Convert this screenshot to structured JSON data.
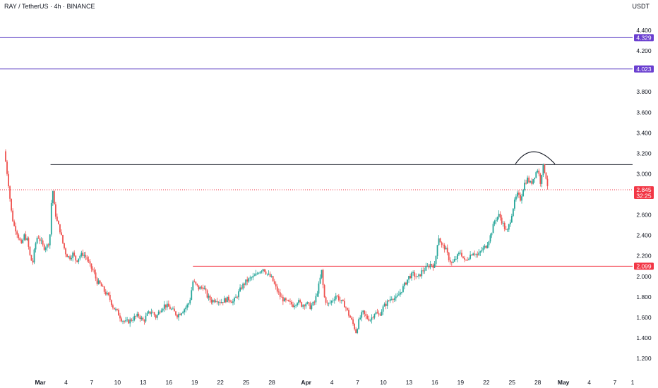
{
  "header": {
    "title": "RAY / TetherUS · 4h · BINANCE",
    "currency": "USDT"
  },
  "colors": {
    "up": "#26a69a",
    "down": "#ef5350",
    "level_purple": "#5b3fc4",
    "level_black": "#131722",
    "level_red": "#f23645",
    "price_dotted": "#f23645",
    "label_purple": "#6a3fd0",
    "label_red": "#f23645"
  },
  "chart_data": {
    "type": "candlestick",
    "interval": "4h",
    "symbol": "RAY / TetherUS",
    "exchange": "BINANCE",
    "ylim": [
      1.1,
      4.5
    ],
    "y_ticks": [
      "4.400",
      "4.200",
      "3.800",
      "3.600",
      "3.400",
      "3.200",
      "3.000",
      "2.600",
      "2.400",
      "2.200",
      "2.000",
      "1.800",
      "1.600",
      "1.400",
      "1.200"
    ],
    "x_ticks": [
      {
        "label": "Mar",
        "bold": true,
        "day": 0
      },
      {
        "label": "4",
        "bold": false,
        "day": 3
      },
      {
        "label": "7",
        "bold": false,
        "day": 6
      },
      {
        "label": "10",
        "bold": false,
        "day": 9
      },
      {
        "label": "13",
        "bold": false,
        "day": 12
      },
      {
        "label": "16",
        "bold": false,
        "day": 15
      },
      {
        "label": "19",
        "bold": false,
        "day": 18
      },
      {
        "label": "22",
        "bold": false,
        "day": 21
      },
      {
        "label": "25",
        "bold": false,
        "day": 24
      },
      {
        "label": "28",
        "bold": false,
        "day": 27
      },
      {
        "label": "Apr",
        "bold": true,
        "day": 31
      },
      {
        "label": "4",
        "bold": false,
        "day": 34
      },
      {
        "label": "7",
        "bold": false,
        "day": 37
      },
      {
        "label": "10",
        "bold": false,
        "day": 40
      },
      {
        "label": "13",
        "bold": false,
        "day": 43
      },
      {
        "label": "16",
        "bold": false,
        "day": 46
      },
      {
        "label": "19",
        "bold": false,
        "day": 49
      },
      {
        "label": "22",
        "bold": false,
        "day": 52
      },
      {
        "label": "25",
        "bold": false,
        "day": 55
      },
      {
        "label": "28",
        "bold": false,
        "day": 58
      },
      {
        "label": "May",
        "bold": true,
        "day": 61
      },
      {
        "label": "4",
        "bold": false,
        "day": 64
      },
      {
        "label": "7",
        "bold": false,
        "day": 67
      },
      {
        "label": "1",
        "bold": false,
        "day": 70
      }
    ],
    "price_path": [
      [
        -4.2,
        3.22
      ],
      [
        -4.0,
        3.1
      ],
      [
        -3.7,
        2.9
      ],
      [
        -3.4,
        2.65
      ],
      [
        -3.1,
        2.5
      ],
      [
        -2.8,
        2.45
      ],
      [
        -2.5,
        2.38
      ],
      [
        -2.2,
        2.3
      ],
      [
        -1.9,
        2.4
      ],
      [
        -1.5,
        2.35
      ],
      [
        -1.2,
        2.2
      ],
      [
        -0.9,
        2.12
      ],
      [
        -0.6,
        2.3
      ],
      [
        -0.3,
        2.4
      ],
      [
        0.0,
        2.35
      ],
      [
        0.4,
        2.28
      ],
      [
        0.8,
        2.3
      ],
      [
        1.1,
        2.35
      ],
      [
        1.4,
        2.9
      ],
      [
        1.6,
        2.7
      ],
      [
        1.9,
        2.55
      ],
      [
        2.3,
        2.45
      ],
      [
        2.7,
        2.3
      ],
      [
        3.0,
        2.22
      ],
      [
        3.4,
        2.18
      ],
      [
        3.8,
        2.22
      ],
      [
        4.2,
        2.15
      ],
      [
        4.6,
        2.2
      ],
      [
        5.0,
        2.22
      ],
      [
        5.4,
        2.18
      ],
      [
        5.8,
        2.1
      ],
      [
        6.2,
        2.05
      ],
      [
        6.6,
        1.95
      ],
      [
        7.0,
        1.92
      ],
      [
        7.5,
        1.85
      ],
      [
        8.0,
        1.8
      ],
      [
        8.5,
        1.7
      ],
      [
        9.0,
        1.65
      ],
      [
        9.5,
        1.58
      ],
      [
        10.0,
        1.55
      ],
      [
        10.5,
        1.57
      ],
      [
        11.0,
        1.6
      ],
      [
        11.5,
        1.62
      ],
      [
        12.0,
        1.56
      ],
      [
        12.5,
        1.63
      ],
      [
        13.0,
        1.66
      ],
      [
        13.5,
        1.6
      ],
      [
        14.0,
        1.68
      ],
      [
        14.5,
        1.72
      ],
      [
        15.0,
        1.7
      ],
      [
        15.5,
        1.66
      ],
      [
        16.0,
        1.62
      ],
      [
        16.5,
        1.66
      ],
      [
        17.0,
        1.7
      ],
      [
        17.4,
        1.75
      ],
      [
        17.8,
        1.95
      ],
      [
        18.1,
        1.92
      ],
      [
        18.5,
        1.88
      ],
      [
        19.0,
        1.9
      ],
      [
        19.5,
        1.8
      ],
      [
        20.0,
        1.76
      ],
      [
        20.5,
        1.78
      ],
      [
        21.0,
        1.75
      ],
      [
        21.5,
        1.77
      ],
      [
        22.0,
        1.78
      ],
      [
        22.5,
        1.75
      ],
      [
        23.0,
        1.82
      ],
      [
        23.5,
        1.9
      ],
      [
        24.0,
        1.95
      ],
      [
        24.5,
        1.98
      ],
      [
        25.0,
        2.0
      ],
      [
        25.5,
        2.05
      ],
      [
        26.0,
        2.08
      ],
      [
        26.5,
        2.02
      ],
      [
        27.0,
        1.98
      ],
      [
        27.5,
        1.88
      ],
      [
        28.0,
        1.8
      ],
      [
        28.5,
        1.76
      ],
      [
        29.0,
        1.74
      ],
      [
        29.5,
        1.72
      ],
      [
        30.0,
        1.76
      ],
      [
        30.5,
        1.72
      ],
      [
        31.0,
        1.74
      ],
      [
        31.5,
        1.7
      ],
      [
        32.0,
        1.75
      ],
      [
        32.5,
        1.92
      ],
      [
        32.8,
        2.05
      ],
      [
        33.1,
        1.8
      ],
      [
        33.5,
        1.72
      ],
      [
        34.0,
        1.76
      ],
      [
        34.5,
        1.82
      ],
      [
        35.0,
        1.76
      ],
      [
        35.5,
        1.72
      ],
      [
        36.0,
        1.62
      ],
      [
        36.4,
        1.55
      ],
      [
        36.8,
        1.46
      ],
      [
        37.2,
        1.58
      ],
      [
        37.6,
        1.65
      ],
      [
        38.0,
        1.6
      ],
      [
        38.5,
        1.58
      ],
      [
        39.0,
        1.65
      ],
      [
        39.5,
        1.62
      ],
      [
        40.0,
        1.7
      ],
      [
        40.5,
        1.75
      ],
      [
        41.0,
        1.8
      ],
      [
        41.5,
        1.78
      ],
      [
        42.0,
        1.85
      ],
      [
        42.5,
        1.92
      ],
      [
        43.0,
        2.0
      ],
      [
        43.5,
        2.02
      ],
      [
        44.0,
        1.98
      ],
      [
        44.5,
        2.05
      ],
      [
        45.0,
        2.08
      ],
      [
        45.5,
        2.12
      ],
      [
        46.0,
        2.1
      ],
      [
        46.4,
        2.4
      ],
      [
        46.8,
        2.3
      ],
      [
        47.2,
        2.28
      ],
      [
        47.6,
        2.18
      ],
      [
        48.0,
        2.12
      ],
      [
        48.5,
        2.18
      ],
      [
        49.0,
        2.24
      ],
      [
        49.5,
        2.14
      ],
      [
        50.0,
        2.2
      ],
      [
        50.5,
        2.24
      ],
      [
        51.0,
        2.2
      ],
      [
        51.5,
        2.26
      ],
      [
        52.0,
        2.3
      ],
      [
        52.5,
        2.4
      ],
      [
        53.0,
        2.55
      ],
      [
        53.5,
        2.6
      ],
      [
        54.0,
        2.5
      ],
      [
        54.4,
        2.42
      ],
      [
        54.8,
        2.55
      ],
      [
        55.2,
        2.7
      ],
      [
        55.6,
        2.8
      ],
      [
        56.0,
        2.75
      ],
      [
        56.4,
        2.9
      ],
      [
        56.8,
        2.95
      ],
      [
        57.2,
        2.9
      ],
      [
        57.6,
        2.98
      ],
      [
        58.0,
        3.05
      ],
      [
        58.3,
        2.92
      ],
      [
        58.6,
        3.08
      ],
      [
        58.9,
        3.0
      ],
      [
        59.2,
        2.86
      ]
    ],
    "levels": [
      {
        "price": 4.329,
        "color": "level_purple",
        "label": "4.329"
      },
      {
        "price": 4.023,
        "color": "level_purple",
        "label": "4.023"
      },
      {
        "price": 3.09,
        "color": "level_black",
        "label": "",
        "from_day": 1.2
      },
      {
        "price": 2.099,
        "color": "level_red",
        "label": "2.099",
        "from_day": 17.8
      }
    ],
    "last_price": {
      "price": 2.845,
      "label": "2.845",
      "countdown": "32:25"
    }
  }
}
